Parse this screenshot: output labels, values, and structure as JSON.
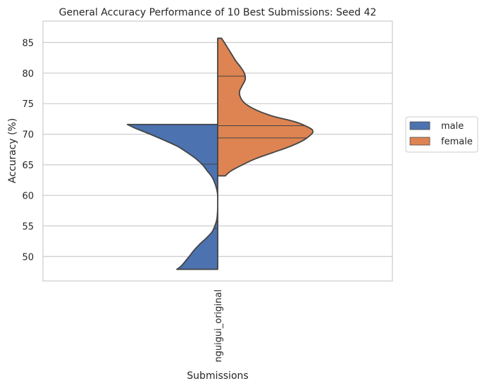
{
  "chart_data": {
    "type": "violin",
    "title": "General Accuracy  Performance of 10 Best Submissions: Seed 42",
    "xlabel": "Submissions",
    "ylabel": "Accuracy (%)",
    "categories": [
      "nguigui_original"
    ],
    "ylim": [
      46.0,
      88.5
    ],
    "yticks": [
      50,
      55,
      60,
      65,
      70,
      75,
      80,
      85
    ],
    "grid": "horizontal",
    "legend": {
      "position": "right",
      "entries": [
        "male",
        "female"
      ]
    },
    "split": true,
    "series": [
      {
        "name": "male",
        "side": "left",
        "color": "#4c72b0",
        "range": [
          47.9,
          71.6
        ],
        "quartiles": [
          54.6,
          60.6,
          65.1
        ],
        "profile": [
          [
            47.9,
            0.43
          ],
          [
            48.5,
            0.38
          ],
          [
            50,
            0.3
          ],
          [
            51,
            0.25
          ],
          [
            52,
            0.19
          ],
          [
            53,
            0.12
          ],
          [
            54,
            0.06
          ],
          [
            55,
            0.03
          ],
          [
            56,
            0.01
          ],
          [
            57,
            0.003
          ],
          [
            58,
            0.0
          ],
          [
            59,
            0.0
          ],
          [
            60,
            0.0
          ],
          [
            61,
            0.01
          ],
          [
            62,
            0.03
          ],
          [
            63,
            0.06
          ],
          [
            64,
            0.11
          ],
          [
            65,
            0.16
          ],
          [
            66,
            0.23
          ],
          [
            67,
            0.32
          ],
          [
            68,
            0.42
          ],
          [
            69,
            0.56
          ],
          [
            70,
            0.71
          ],
          [
            71,
            0.87
          ],
          [
            71.6,
            0.95
          ]
        ]
      },
      {
        "name": "female",
        "side": "right",
        "color": "#dd8452",
        "range": [
          63.2,
          85.7
        ],
        "quartiles": [
          69.4,
          71.4,
          79.5
        ],
        "profile": [
          [
            63.2,
            0.08
          ],
          [
            64,
            0.14
          ],
          [
            65,
            0.26
          ],
          [
            66,
            0.4
          ],
          [
            67,
            0.58
          ],
          [
            68,
            0.76
          ],
          [
            69,
            0.9
          ],
          [
            70,
            0.985
          ],
          [
            70.5,
            1.0
          ],
          [
            71,
            0.97
          ],
          [
            72,
            0.82
          ],
          [
            73,
            0.57
          ],
          [
            74,
            0.4
          ],
          [
            75,
            0.29
          ],
          [
            76,
            0.24
          ],
          [
            77,
            0.23
          ],
          [
            78,
            0.26
          ],
          [
            79,
            0.29
          ],
          [
            80,
            0.28
          ],
          [
            81,
            0.24
          ],
          [
            82,
            0.19
          ],
          [
            83,
            0.15
          ],
          [
            84,
            0.11
          ],
          [
            85,
            0.07
          ],
          [
            85.7,
            0.04
          ]
        ]
      }
    ]
  }
}
